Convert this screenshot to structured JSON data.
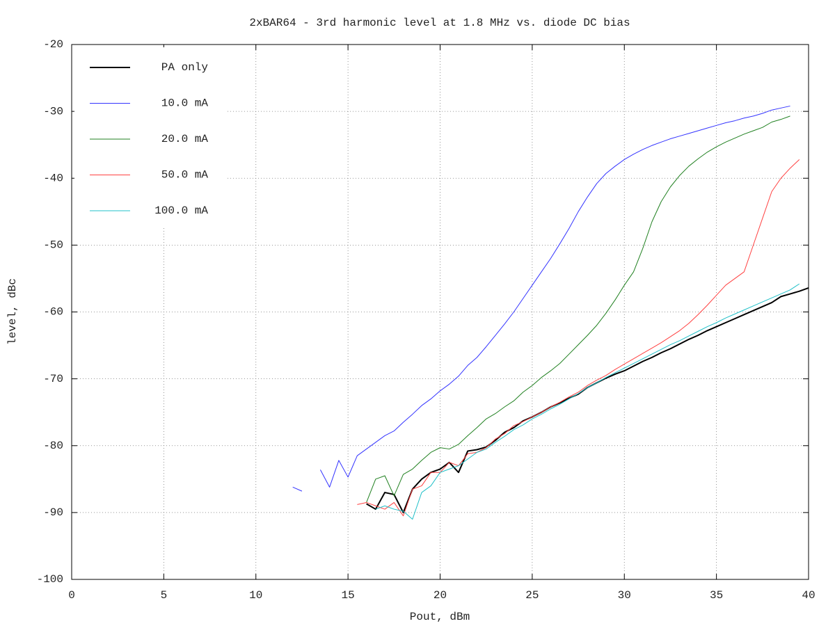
{
  "chart_data": {
    "type": "line",
    "title": "2xBAR64 - 3rd harmonic level at 1.8 MHz vs. diode DC bias",
    "x_label": "Pout, dBm",
    "y_label": "level, dBc",
    "xlim": [
      0,
      40
    ],
    "ylim": [
      -100,
      -20
    ],
    "xticks": [
      0,
      5,
      10,
      15,
      20,
      25,
      30,
      35,
      40
    ],
    "yticks": [
      -100,
      -90,
      -80,
      -70,
      -60,
      -50,
      -40,
      -30,
      -20
    ],
    "grid": true,
    "legend": "upper-left",
    "x": [
      12,
      12.5,
      13,
      13.5,
      14,
      14.5,
      15,
      15.5,
      16,
      16.5,
      17,
      17.5,
      18,
      18.5,
      19,
      19.5,
      20,
      20.5,
      21,
      21.5,
      22,
      22.5,
      23,
      23.5,
      24,
      24.5,
      25,
      25.5,
      26,
      26.5,
      27,
      27.5,
      28,
      28.5,
      29,
      29.5,
      30,
      30.5,
      31,
      31.5,
      32,
      32.5,
      33,
      33.5,
      34,
      34.5,
      35,
      35.5,
      36,
      36.5,
      37,
      37.5,
      38,
      38.5,
      39,
      39.5,
      40
    ],
    "series": [
      {
        "name": "PA only",
        "color": "#000000",
        "width": 2,
        "values": [
          null,
          null,
          null,
          null,
          null,
          null,
          null,
          null,
          -88.7,
          -89.5,
          -87,
          -87.3,
          -90,
          -86.5,
          -85,
          -84,
          -83.5,
          -82.5,
          -84,
          -80.8,
          -80.6,
          -80.2,
          -79.2,
          -78,
          -77.3,
          -76.3,
          -75.7,
          -75,
          -74.2,
          -73.6,
          -72.9,
          -72.3,
          -71.3,
          -70.6,
          -69.9,
          -69.3,
          -68.8,
          -68.1,
          -67.4,
          -66.8,
          -66.1,
          -65.5,
          -64.8,
          -64.1,
          -63.5,
          -62.8,
          -62.2,
          -61.6,
          -61,
          -60.4,
          -59.8,
          -59.2,
          -58.6,
          -57.7,
          -57.3,
          -56.9,
          -56.4
        ]
      },
      {
        "name": "10.0 mA",
        "color": "#3333ff",
        "width": 1,
        "values": [
          -86.2,
          -86.8,
          null,
          -83.6,
          -86.2,
          -82.2,
          -84.7,
          -81.5,
          -80.5,
          -79.5,
          -78.5,
          -77.8,
          -76.5,
          -75.3,
          -74,
          -73,
          -71.8,
          -70.8,
          -69.6,
          -68,
          -66.8,
          -65.2,
          -63.5,
          -61.8,
          -60,
          -58,
          -56,
          -54,
          -52,
          -49.8,
          -47.5,
          -45,
          -42.8,
          -40.8,
          -39.3,
          -38.2,
          -37.2,
          -36.4,
          -35.7,
          -35.1,
          -34.6,
          -34.1,
          -33.7,
          -33.3,
          -32.9,
          -32.5,
          -32.1,
          -31.7,
          -31.4,
          -31,
          -30.7,
          -30.3,
          -29.8,
          -29.5,
          -29.2,
          null,
          null
        ]
      },
      {
        "name": "20.0 mA",
        "color": "#208020",
        "width": 1,
        "values": [
          null,
          null,
          null,
          null,
          null,
          null,
          null,
          null,
          -88.5,
          -85,
          -84.5,
          -87.5,
          -84.3,
          -83.5,
          -82.2,
          -81,
          -80.3,
          -80.5,
          -79.8,
          -78.5,
          -77.3,
          -76,
          -75.2,
          -74.2,
          -73.3,
          -72,
          -71,
          -69.8,
          -68.8,
          -67.7,
          -66.3,
          -64.9,
          -63.5,
          -62,
          -60.2,
          -58.2,
          -56,
          -54,
          -50.5,
          -46.5,
          -43.5,
          -41.3,
          -39.6,
          -38.2,
          -37.1,
          -36.1,
          -35.3,
          -34.6,
          -34,
          -33.4,
          -32.9,
          -32.4,
          -31.6,
          -31.2,
          -30.7,
          null,
          null
        ]
      },
      {
        "name": "50.0 mA",
        "color": "#ff4040",
        "width": 1,
        "values": [
          null,
          null,
          null,
          null,
          null,
          null,
          null,
          -88.8,
          -88.5,
          -89,
          -89.5,
          -88.5,
          -90.5,
          -86.5,
          -86,
          -84,
          -84,
          -82.5,
          -83,
          -81.2,
          -81,
          -80.3,
          -79,
          -78.2,
          -77,
          -76.4,
          -75.7,
          -75,
          -74.2,
          -73.5,
          -72.7,
          -72,
          -71,
          -70.2,
          -69.5,
          -68.6,
          -67.8,
          -67,
          -66.2,
          -65.4,
          -64.6,
          -63.7,
          -62.8,
          -61.7,
          -60.4,
          -59,
          -57.5,
          -56,
          -55,
          -54,
          -50,
          -46,
          -42,
          -40,
          -38.5,
          -37.2,
          null
        ]
      },
      {
        "name": "100.0 mA",
        "color": "#20c0c8",
        "width": 1,
        "values": [
          null,
          null,
          null,
          null,
          null,
          null,
          null,
          null,
          null,
          -89.5,
          -89,
          -89.5,
          -89.8,
          -91,
          -87,
          -86,
          -84,
          -83.5,
          -83,
          -82,
          -81,
          -80.5,
          -79.5,
          -78.6,
          -77.6,
          -76.9,
          -76,
          -75.3,
          -74.5,
          -73.8,
          -73,
          -72.2,
          -71.3,
          -70.6,
          -69.8,
          -69.1,
          -68.4,
          -67.7,
          -67,
          -66.3,
          -65.6,
          -64.9,
          -64.3,
          -63.6,
          -62.9,
          -62.2,
          -61.6,
          -60.9,
          -60.3,
          -59.7,
          -59.1,
          -58.5,
          -57.9,
          -57.3,
          -56.7,
          -55.8,
          null
        ]
      }
    ]
  }
}
